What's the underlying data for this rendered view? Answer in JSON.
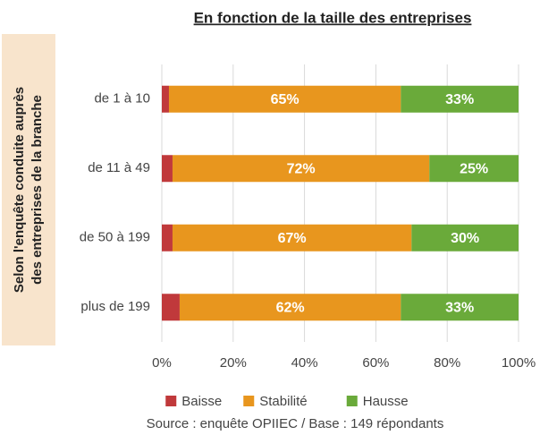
{
  "chart_data": {
    "type": "stacked_barh",
    "title": "En fonction de la taille des entreprises",
    "ylabel": [
      "Selon l'enquête conduite auprès",
      "des entreprises de la branche"
    ],
    "categories": [
      "de 1 à 10",
      "de 11 à 49",
      "de 50 à 199",
      "plus de 199"
    ],
    "series": [
      {
        "name": "Baisse",
        "color": "#c0393b",
        "values": [
          2,
          3,
          3,
          5
        ]
      },
      {
        "name": "Stabilité",
        "color": "#e8961e",
        "values": [
          65,
          72,
          67,
          62
        ],
        "value_labels": [
          "65%",
          "72%",
          "67%",
          "62%"
        ]
      },
      {
        "name": "Hausse",
        "color": "#6aaa3a",
        "values": [
          33,
          25,
          30,
          33
        ],
        "value_labels": [
          "33%",
          "25%",
          "30%",
          "33%"
        ]
      }
    ],
    "xlim": [
      0,
      100
    ],
    "xticks": [
      {
        "value": 0,
        "label": "0%"
      },
      {
        "value": 20,
        "label": "20%"
      },
      {
        "value": 40,
        "label": "40%"
      },
      {
        "value": 60,
        "label": "60%"
      },
      {
        "value": 80,
        "label": "80%"
      },
      {
        "value": 100,
        "label": "100%"
      }
    ],
    "grid": true,
    "legend": "bottom",
    "source": "Source : enquête OPIIEC / Base : 149 répondants"
  }
}
